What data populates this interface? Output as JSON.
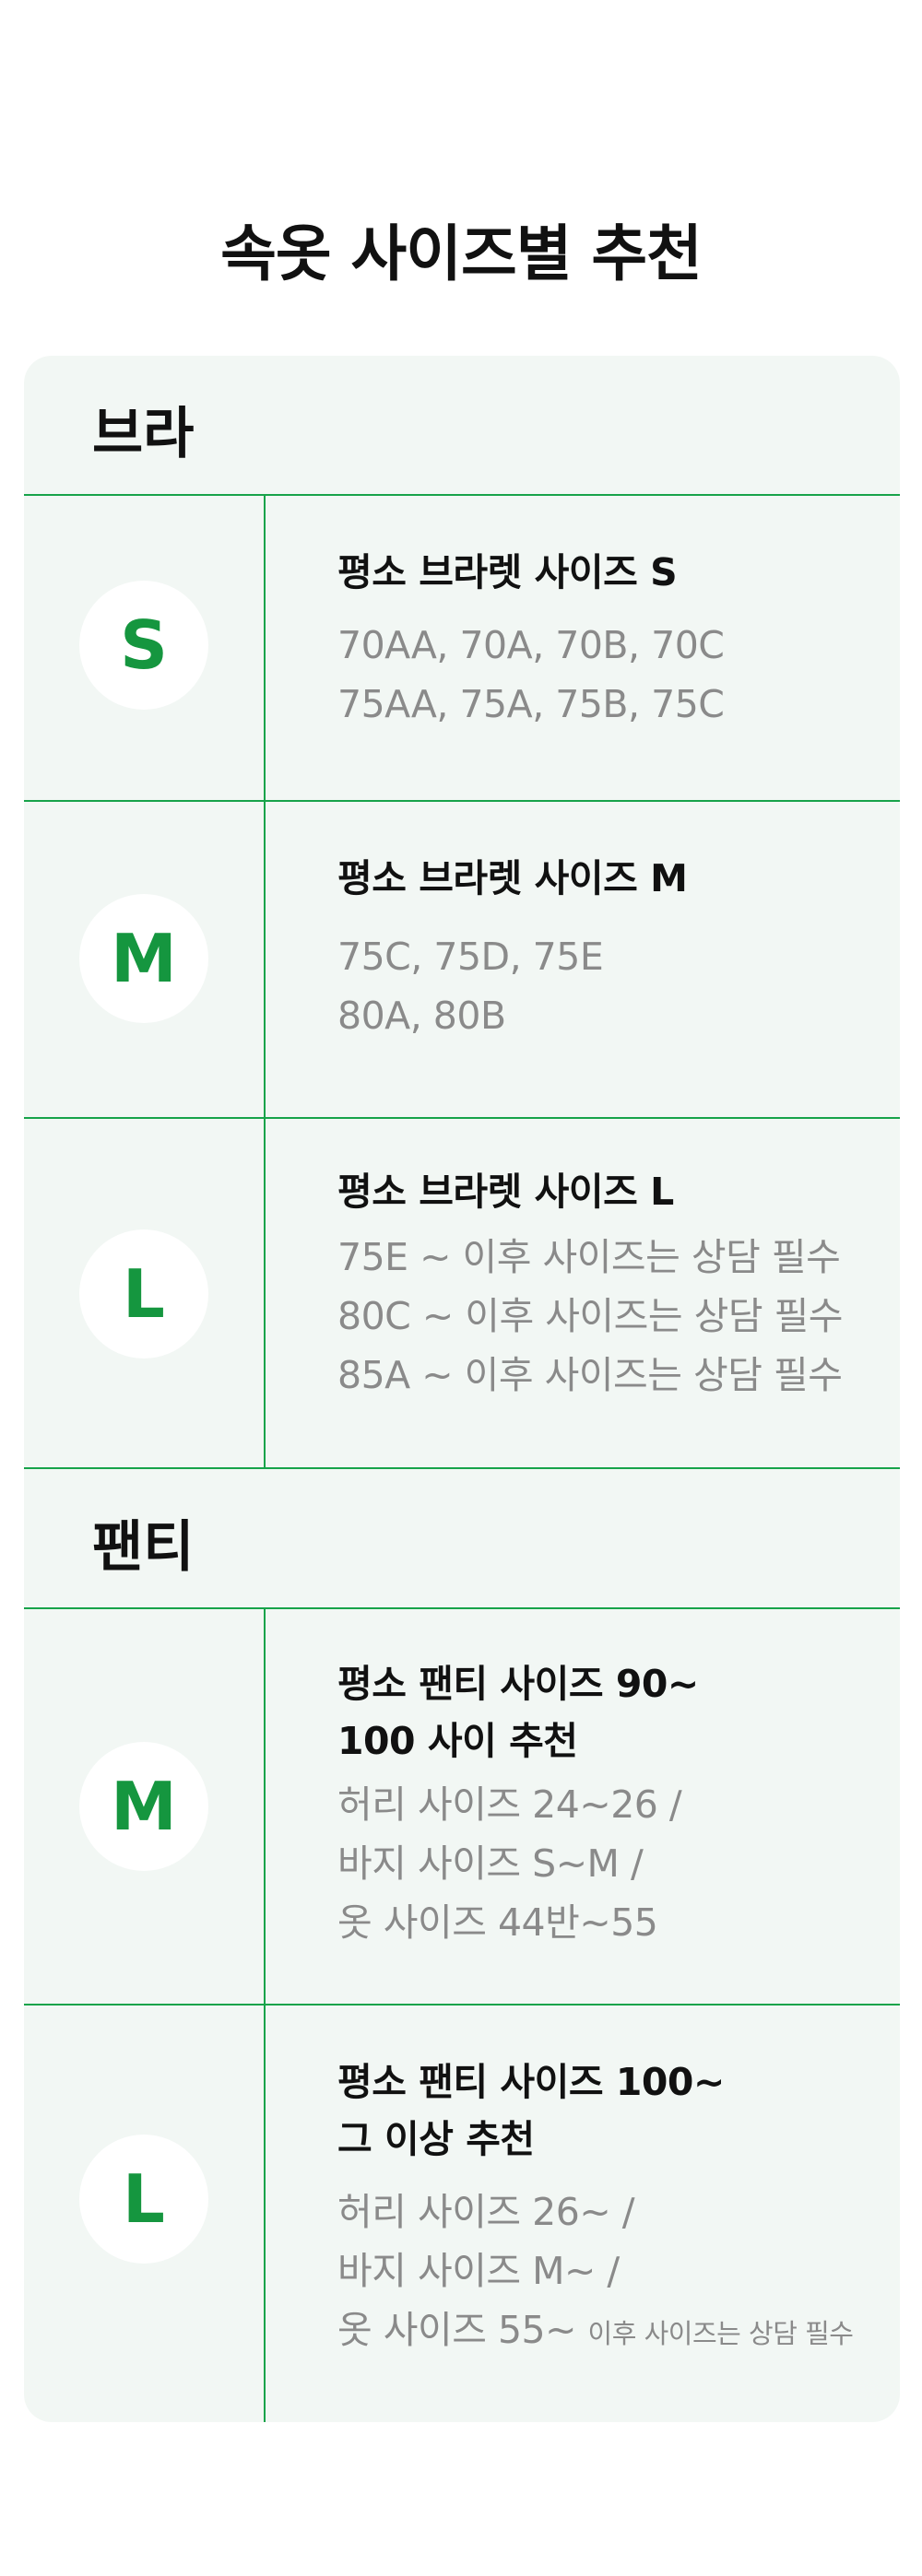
{
  "title": "속옷 사이즈별 추천",
  "bra": {
    "label": "브라",
    "rows": [
      {
        "size": "S",
        "heading": "평소 브라렛 사이즈 S",
        "lines": [
          "70AA, 70A, 70B, 70C",
          "75AA, 75A, 75B, 75C"
        ]
      },
      {
        "size": "M",
        "heading": "평소 브라렛 사이즈 M",
        "lines": [
          "75C, 75D, 75E",
          "80A, 80B"
        ]
      },
      {
        "size": "L",
        "heading": "평소 브라렛 사이즈 L",
        "lines": [
          "75E  ~ 이후 사이즈는 상담 필수",
          "80C ~ 이후 사이즈는 상담 필수",
          "85A ~ 이후 사이즈는 상담 필수"
        ]
      }
    ]
  },
  "panty": {
    "label": "팬티",
    "rows": [
      {
        "size": "M",
        "heading_lines": [
          "평소 팬티 사이즈 90~",
          "100 사이 추천"
        ],
        "lines": [
          "허리 사이즈 24~26 /",
          "바지 사이즈 S~M /",
          "옷 사이즈 44반~55"
        ]
      },
      {
        "size": "L",
        "heading_lines": [
          "평소 팬티 사이즈 100~",
          "그 이상 추천"
        ],
        "lines": [
          "허리 사이즈 26~ /",
          "바지 사이즈 M~ /"
        ],
        "last_line_main": "옷 사이즈 55~",
        "last_line_note": "이후 사이즈는 상담 필수"
      }
    ]
  },
  "colors": {
    "accent": "#15963f",
    "line": "#17a34a",
    "card_bg": "#f2f7f4",
    "desc_text": "#8a8a8a"
  }
}
